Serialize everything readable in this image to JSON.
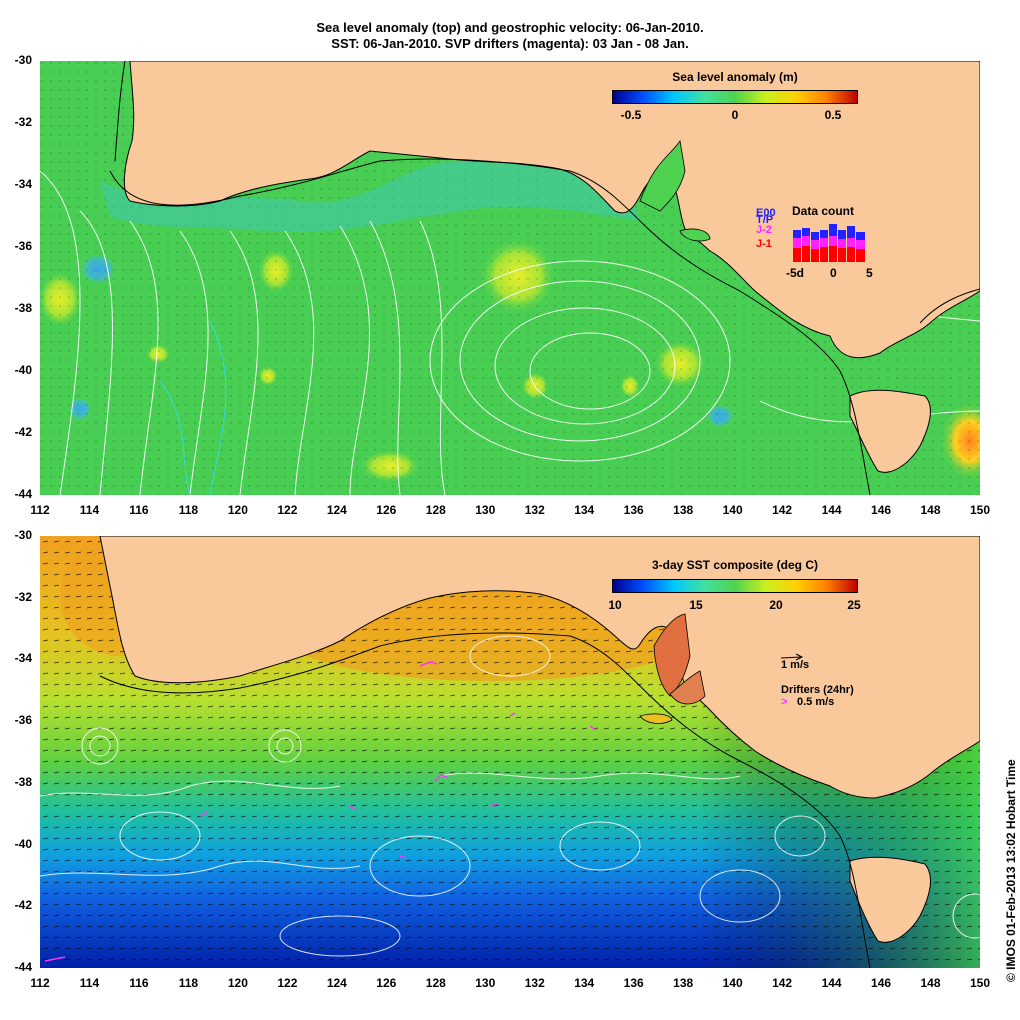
{
  "title": {
    "line1": "Sea level anomaly (top) and geostrophic velocity: 06-Jan-2010.",
    "line2": "SST: 06-Jan-2010. SVP drifters (magenta): 03 Jan - 08 Jan."
  },
  "axes": {
    "longitudes": [
      "112",
      "114",
      "116",
      "118",
      "120",
      "122",
      "124",
      "126",
      "128",
      "130",
      "132",
      "134",
      "136",
      "138",
      "140",
      "142",
      "144",
      "146",
      "148",
      "150"
    ],
    "latitudes": [
      "-30",
      "-32",
      "-34",
      "-36",
      "-38",
      "-40",
      "-42",
      "-44"
    ]
  },
  "top_panel": {
    "colorbar_title": "Sea level anomaly (m)",
    "colorbar_ticks": [
      "-0.5",
      "0",
      "0.5"
    ],
    "colorbar_range": [
      -0.6,
      0.6
    ],
    "data_count": {
      "title": "Data count",
      "legend": [
        "E00",
        "T/P",
        "J-2",
        "J-1"
      ],
      "legend_colors": [
        "#2222ff",
        "#2222ff",
        "#ff22ff",
        "#ff0000"
      ],
      "ticks": [
        "-5d",
        "0",
        "5"
      ]
    }
  },
  "bottom_panel": {
    "colorbar_title": "3-day SST composite (deg C)",
    "colorbar_ticks": [
      "10",
      "15",
      "20",
      "25"
    ],
    "colorbar_range": [
      10,
      25
    ],
    "velocity_scale": "1 m/s",
    "drifters_label": "Drifters (24hr)",
    "drifter_scale": "0.5 m/s"
  },
  "credit": "© IMOS 01-Feb-2013 13:02 Hobart Time",
  "colors": {
    "land": "#f9c89b",
    "ocean_slope": "#4fd24f",
    "drifter": "#ff33ff",
    "contour": "#ffffff",
    "cyan_contour": "#33dddd"
  }
}
